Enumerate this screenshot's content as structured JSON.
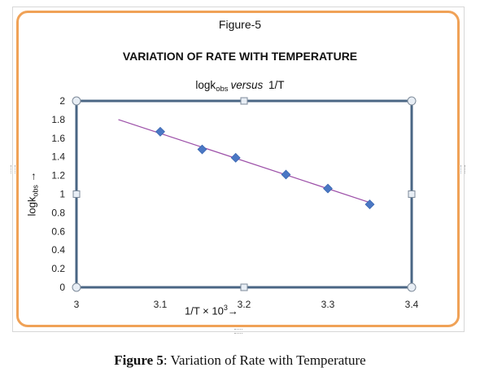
{
  "figure_label": "Figure-5",
  "caption": {
    "bold": "Figure 5",
    "text": ": Variation of Rate with Temperature"
  },
  "colors": {
    "card_border": "#f0a257",
    "plot_frame": "#4a6684",
    "line": "#9c4fa8",
    "marker": "#4a77c4"
  },
  "chart_data": {
    "type": "scatter",
    "title": "VARIATION OF RATE WITH TEMPERATURE",
    "subtitle": {
      "y_name": "logk",
      "y_sub": "obs",
      "word": "versus",
      "x_name": "1/T"
    },
    "ylabel": {
      "main": "logk",
      "sub": "obs",
      "arrow": "→"
    },
    "xlabel": {
      "main": "1/T × 10",
      "sup": "3",
      "arrow": "→"
    },
    "xlim": [
      3,
      3.4
    ],
    "ylim": [
      0,
      2
    ],
    "xticks": [
      "3",
      "3.1",
      "3.2",
      "3.3",
      "3.4"
    ],
    "yticks": [
      "0",
      "0.2",
      "0.4",
      "0.6",
      "0.8",
      "1",
      "1.2",
      "1.4",
      "1.6",
      "1.8",
      "2"
    ],
    "grid": false,
    "series": [
      {
        "x": [
          3.1,
          3.15,
          3.19,
          3.25,
          3.3,
          3.35
        ],
        "y": [
          1.67,
          1.48,
          1.39,
          1.21,
          1.06,
          0.89
        ],
        "marker": "diamond"
      }
    ],
    "trendline": {
      "x": [
        3.05,
        3.35
      ],
      "y": [
        1.8,
        0.91
      ]
    }
  }
}
